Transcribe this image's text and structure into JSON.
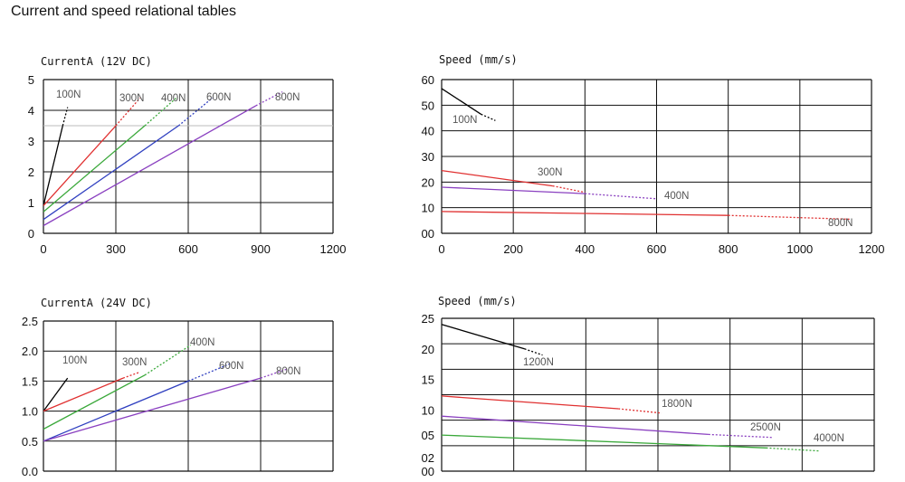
{
  "page_title": "Current and speed relational tables",
  "chart_data": [
    {
      "type": "line",
      "title": "CurrentA (12V DC)",
      "xlim": [
        0,
        1200
      ],
      "ylim": [
        0,
        5
      ],
      "x_ticks": [
        "0",
        "300",
        "600",
        "900",
        "1200"
      ],
      "y_ticks": [
        "0",
        "1",
        "2",
        "3",
        "4",
        "5"
      ],
      "grid": true,
      "reference_line": 3.5,
      "series": [
        {
          "name": "100N",
          "color": "#000000",
          "solid": [
            [
              0,
              0.9
            ],
            [
              80,
              3.5
            ]
          ],
          "dashed": [
            [
              80,
              3.5
            ],
            [
              100,
              4.1
            ]
          ]
        },
        {
          "name": "300N",
          "color": "#e03030",
          "solid": [
            [
              0,
              0.9
            ],
            [
              300,
              3.5
            ]
          ],
          "dashed": [
            [
              300,
              3.5
            ],
            [
              400,
              4.4
            ]
          ]
        },
        {
          "name": "400N",
          "color": "#3aa83a",
          "solid": [
            [
              0,
              0.7
            ],
            [
              420,
              3.5
            ]
          ],
          "dashed": [
            [
              420,
              3.5
            ],
            [
              550,
              4.4
            ]
          ]
        },
        {
          "name": "600N",
          "color": "#3040c0",
          "solid": [
            [
              0,
              0.45
            ],
            [
              560,
              3.5
            ]
          ],
          "dashed": [
            [
              560,
              3.5
            ],
            [
              700,
              4.4
            ]
          ]
        },
        {
          "name": "800N",
          "color": "#8a40c0",
          "solid": [
            [
              0,
              0.25
            ],
            [
              880,
              4.15
            ]
          ],
          "dashed": [
            [
              880,
              4.15
            ],
            [
              990,
              4.6
            ]
          ]
        }
      ]
    },
    {
      "type": "line",
      "title": "Speed (mm/s)",
      "xlim": [
        0,
        1200
      ],
      "ylim": [
        0,
        60
      ],
      "x_ticks": [
        "0",
        "200",
        "400",
        "600",
        "800",
        "1000",
        "1200"
      ],
      "y_ticks": [
        "00",
        "10",
        "20",
        "30",
        "40",
        "50",
        "60"
      ],
      "grid": true,
      "series": [
        {
          "name": "100N",
          "color": "#000000",
          "solid": [
            [
              0,
              56.5
            ],
            [
              110,
              46.5
            ]
          ],
          "dashed": [
            [
              110,
              46.5
            ],
            [
              150,
              44
            ]
          ]
        },
        {
          "name": "300N",
          "color": "#e03030",
          "solid": [
            [
              0,
              24.5
            ],
            [
              310,
              18.5
            ]
          ],
          "dashed": [
            [
              310,
              18.5
            ],
            [
              400,
              16
            ]
          ]
        },
        {
          "name": "400N",
          "color": "#8a40c0",
          "solid": [
            [
              0,
              18
            ],
            [
              400,
              15.5
            ]
          ],
          "dashed": [
            [
              400,
              15.5
            ],
            [
              600,
              13.5
            ]
          ]
        },
        {
          "name": "800N",
          "color": "#e03030",
          "solid": [
            [
              0,
              8.5
            ],
            [
              800,
              7
            ]
          ],
          "dashed": [
            [
              800,
              7
            ],
            [
              1140,
              5.5
            ]
          ]
        }
      ]
    },
    {
      "type": "line",
      "title": "CurrentA (24V DC)",
      "xlim": [
        0,
        1200
      ],
      "ylim": [
        0,
        2.5
      ],
      "x_ticks": [],
      "y_ticks": [
        "0.0",
        "0.5",
        "1.0",
        "1.5",
        "2.0",
        "2.5"
      ],
      "grid": true,
      "series": [
        {
          "name": "100N",
          "color": "#000000",
          "solid": [
            [
              0,
              1.0
            ],
            [
              100,
              1.55
            ]
          ],
          "dashed": []
        },
        {
          "name": "300N",
          "color": "#e03030",
          "solid": [
            [
              0,
              1.0
            ],
            [
              330,
              1.55
            ]
          ],
          "dashed": [
            [
              330,
              1.55
            ],
            [
              400,
              1.65
            ]
          ]
        },
        {
          "name": "400N",
          "color": "#3aa83a",
          "solid": [
            [
              0,
              0.7
            ],
            [
              420,
              1.6
            ]
          ],
          "dashed": [
            [
              420,
              1.6
            ],
            [
              610,
              2.1
            ]
          ]
        },
        {
          "name": "600N",
          "color": "#3040c0",
          "solid": [
            [
              0,
              0.5
            ],
            [
              600,
              1.5
            ]
          ],
          "dashed": [
            [
              600,
              1.5
            ],
            [
              780,
              1.8
            ]
          ]
        },
        {
          "name": "800N",
          "color": "#8a40c0",
          "solid": [
            [
              0,
              0.5
            ],
            [
              900,
              1.55
            ]
          ],
          "dashed": [
            [
              900,
              1.55
            ],
            [
              1010,
              1.7
            ]
          ]
        }
      ]
    },
    {
      "type": "line",
      "title": "Speed (mm/s)",
      "xlim": [
        0,
        1200
      ],
      "ylim": [
        0,
        25
      ],
      "x_ticks": [],
      "y_ticks": [
        "00",
        "02",
        "05",
        "10",
        "15",
        "20",
        "25"
      ],
      "grid": true,
      "series": [
        {
          "name": "1200N",
          "color": "#000000",
          "solid": [
            [
              0,
              24
            ],
            [
              230,
              20
            ]
          ],
          "dashed": [
            [
              230,
              20
            ],
            [
              280,
              19
            ]
          ]
        },
        {
          "name": "1800N",
          "color": "#e03030",
          "solid": [
            [
              0,
              12.3
            ],
            [
              490,
              10.2
            ]
          ],
          "dashed": [
            [
              490,
              10.2
            ],
            [
              610,
              9.5
            ]
          ]
        },
        {
          "name": "2500N",
          "color": "#8a40c0",
          "solid": [
            [
              0,
              9
            ],
            [
              740,
              6
            ]
          ],
          "dashed": [
            [
              740,
              6
            ],
            [
              920,
              5.5
            ]
          ]
        },
        {
          "name": "4000N",
          "color": "#3aa83a",
          "solid": [
            [
              0,
              5.9
            ],
            [
              900,
              3.8
            ]
          ],
          "dashed": [
            [
              900,
              3.8
            ],
            [
              1050,
              3.3
            ]
          ]
        }
      ]
    }
  ]
}
